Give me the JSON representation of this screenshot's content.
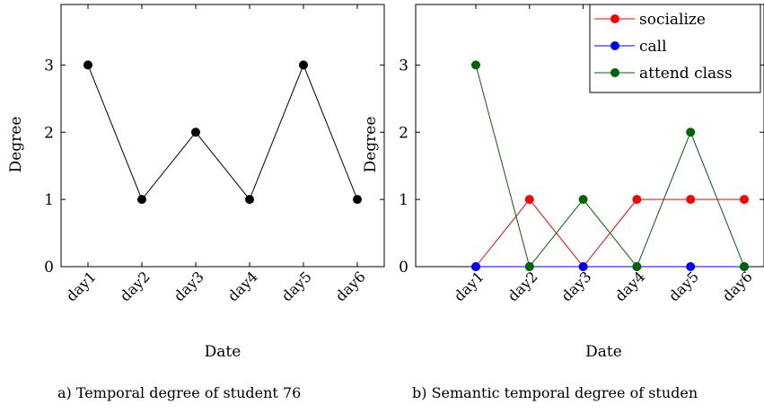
{
  "chart_data": [
    {
      "type": "line",
      "caption": "a) Temporal degree of student 76",
      "categories": [
        "day1",
        "day2",
        "day3",
        "day4",
        "day5",
        "day6"
      ],
      "xlabel": "Date",
      "ylabel": "Degree",
      "ylim": [
        0,
        3.9
      ],
      "yticks": [
        "0",
        "1",
        "2",
        "3"
      ],
      "grid": false,
      "series": [
        {
          "name": "",
          "color": "#000000",
          "values": [
            3,
            1,
            2,
            1,
            3,
            1
          ]
        }
      ]
    },
    {
      "type": "line",
      "caption": "b) Semantic temporal degree of studen",
      "categories": [
        "day1",
        "day2",
        "day3",
        "day4",
        "day5",
        "day6"
      ],
      "xlabel": "Date",
      "ylabel": "Degree",
      "ylim": [
        0,
        3.9
      ],
      "yticks": [
        "0",
        "1",
        "2",
        "3"
      ],
      "grid": false,
      "legend": "top-right",
      "series": [
        {
          "name": "socialize",
          "color": "#ff0000",
          "values": [
            0,
            1,
            0,
            1,
            1,
            1
          ]
        },
        {
          "name": "call",
          "color": "#0000ff",
          "values": [
            0,
            0,
            0,
            0,
            0,
            0
          ]
        },
        {
          "name": "attend class",
          "color": "#006400",
          "values": [
            3,
            0,
            1,
            0,
            2,
            0
          ]
        }
      ]
    }
  ]
}
